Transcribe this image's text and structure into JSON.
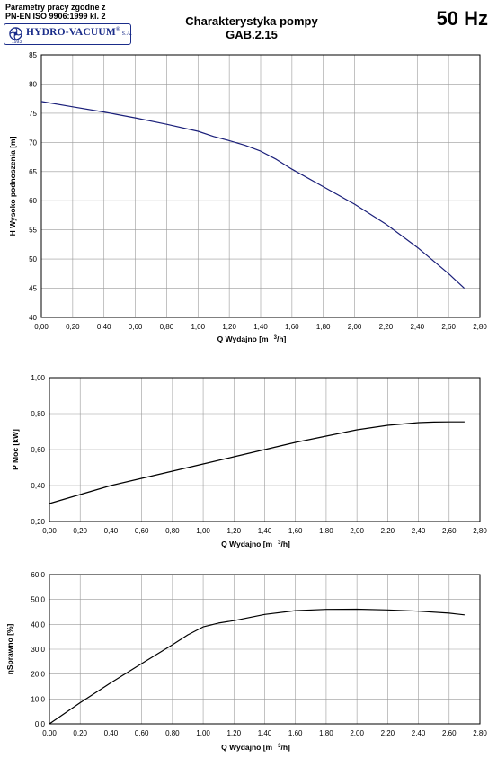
{
  "header": {
    "standard_line1": "Parametry pracy zgodne z",
    "standard_line2": "PN-EN ISO 9906:1999 kl. 2",
    "brand": "HYDRO-VACUUM",
    "brand_mark": "®",
    "brand_suffix": "S.A.",
    "brand_year": "1993",
    "title_line1": "Charakterystyka pompy",
    "title_line2": "GAB.2.15",
    "frequency": "50 Hz",
    "brand_color": "#1b2d8a"
  },
  "chart_data": [
    {
      "type": "line",
      "ylabel": "H  Wysoko podnoszenia [m]",
      "xlabel_parts": [
        "Q Wydajno  [m",
        "3",
        "/h]"
      ],
      "xlim": [
        0,
        2.8
      ],
      "ylim": [
        40,
        85
      ],
      "x_ticks": [
        "0,00",
        "0,20",
        "0,40",
        "0,60",
        "0,80",
        "1,00",
        "1,20",
        "1,40",
        "1,60",
        "1,80",
        "2,00",
        "2,20",
        "2,40",
        "2,60",
        "2,80"
      ],
      "y_ticks": [
        "40",
        "45",
        "50",
        "55",
        "60",
        "65",
        "70",
        "75",
        "80",
        "85"
      ],
      "grid": true,
      "line_color": "#1a1f7a",
      "series": [
        {
          "x": [
            0,
            0.2,
            0.4,
            0.6,
            0.8,
            1.0,
            1.1,
            1.2,
            1.3,
            1.4,
            1.5,
            1.6,
            1.8,
            2.0,
            2.2,
            2.4,
            2.6,
            2.7
          ],
          "values": [
            77,
            76.1,
            75.2,
            74.2,
            73.1,
            71.9,
            71.0,
            70.3,
            69.5,
            68.5,
            67.1,
            65.4,
            62.4,
            59.4,
            56.0,
            52.0,
            47.5,
            45.0
          ]
        }
      ]
    },
    {
      "type": "line",
      "ylabel": "P  Moc [kW]",
      "xlabel_parts": [
        "Q Wydajno  [m",
        "3",
        "/h]"
      ],
      "xlim": [
        0,
        2.8
      ],
      "ylim": [
        0.2,
        1.0
      ],
      "x_ticks": [
        "0,00",
        "0,20",
        "0,40",
        "0,60",
        "0,80",
        "1,00",
        "1,20",
        "1,40",
        "1,60",
        "1,80",
        "2,00",
        "2,20",
        "2,40",
        "2,60",
        "2,80"
      ],
      "y_ticks": [
        "0,20",
        "0,40",
        "0,60",
        "0,80",
        "1,00"
      ],
      "grid": true,
      "line_color": "#000000",
      "series": [
        {
          "x": [
            0,
            0.2,
            0.4,
            0.6,
            0.8,
            1.0,
            1.2,
            1.4,
            1.6,
            1.8,
            2.0,
            2.2,
            2.4,
            2.5,
            2.6,
            2.7
          ],
          "values": [
            0.3,
            0.35,
            0.4,
            0.44,
            0.48,
            0.52,
            0.56,
            0.6,
            0.64,
            0.675,
            0.71,
            0.735,
            0.75,
            0.753,
            0.754,
            0.754
          ]
        }
      ]
    },
    {
      "type": "line",
      "ylabel": "ηSprawno [%]",
      "xlabel_parts": [
        "Q Wydajno  [m",
        "3",
        "/h]"
      ],
      "xlim": [
        0,
        2.8
      ],
      "ylim": [
        0,
        60
      ],
      "x_ticks": [
        "0,00",
        "0,20",
        "0,40",
        "0,60",
        "0,80",
        "1,00",
        "1,20",
        "1,40",
        "1,60",
        "1,80",
        "2,00",
        "2,20",
        "2,40",
        "2,60",
        "2,80"
      ],
      "y_ticks": [
        "0,0",
        "10,0",
        "20,0",
        "30,0",
        "40,0",
        "50,0",
        "60,0"
      ],
      "grid": true,
      "line_color": "#000000",
      "series": [
        {
          "x": [
            0,
            0.2,
            0.4,
            0.6,
            0.8,
            0.9,
            1.0,
            1.1,
            1.2,
            1.4,
            1.6,
            1.8,
            2.0,
            2.2,
            2.4,
            2.6,
            2.7
          ],
          "values": [
            0,
            8.5,
            16.5,
            24.2,
            31.8,
            35.8,
            39.0,
            40.5,
            41.5,
            44.0,
            45.5,
            46.0,
            46.1,
            45.8,
            45.3,
            44.5,
            43.8
          ]
        }
      ]
    }
  ]
}
